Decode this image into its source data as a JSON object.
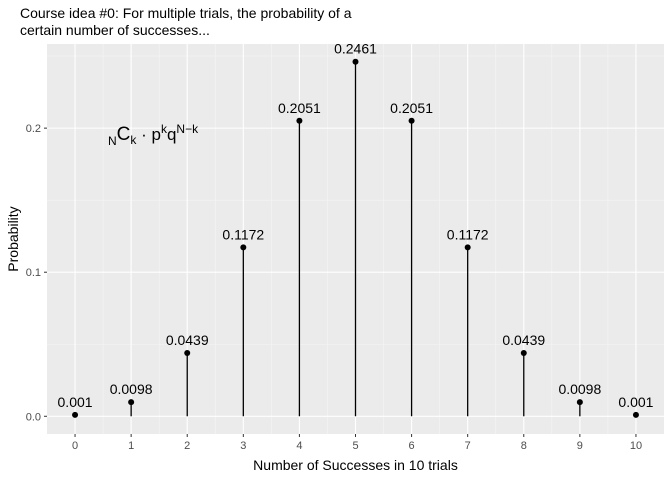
{
  "chart_data": {
    "type": "bar",
    "style": "lollipop",
    "title": [
      "Course idea #0: For multiple trials, the probability of a",
      "certain number of successes..."
    ],
    "xlabel": "Number of Successes in 10 trials",
    "ylabel": "Probability",
    "x": [
      0,
      1,
      2,
      3,
      4,
      5,
      6,
      7,
      8,
      9,
      10
    ],
    "values": [
      0.001,
      0.0098,
      0.0439,
      0.1172,
      0.2051,
      0.2461,
      0.2051,
      0.1172,
      0.0439,
      0.0098,
      0.001
    ],
    "labels": [
      "0.001",
      "0.0098",
      "0.0439",
      "0.1172",
      "0.2051",
      "0.2461",
      "0.2051",
      "0.1172",
      "0.0439",
      "0.0098",
      "0.001"
    ],
    "x_ticks": [
      "0",
      "1",
      "2",
      "3",
      "4",
      "5",
      "6",
      "7",
      "8",
      "9",
      "10"
    ],
    "y_ticks": [
      {
        "value": 0,
        "label": "0.0"
      },
      {
        "value": 0.1,
        "label": "0.1"
      },
      {
        "value": 0.2,
        "label": "0.2"
      }
    ],
    "xlim": [
      -0.5,
      10.5
    ],
    "ylim": [
      -0.0123,
      0.2584
    ],
    "grid": true,
    "annotation": {
      "parts": [
        "N",
        "C",
        "k",
        "·",
        "p",
        "k",
        "q",
        "N−k"
      ],
      "x": 1.3,
      "y": 0.196
    },
    "colors": {
      "panel": "#ebebeb",
      "grid_major": "#ffffff",
      "grid_minor": "#f5f5f5",
      "mark": "#000000"
    }
  }
}
